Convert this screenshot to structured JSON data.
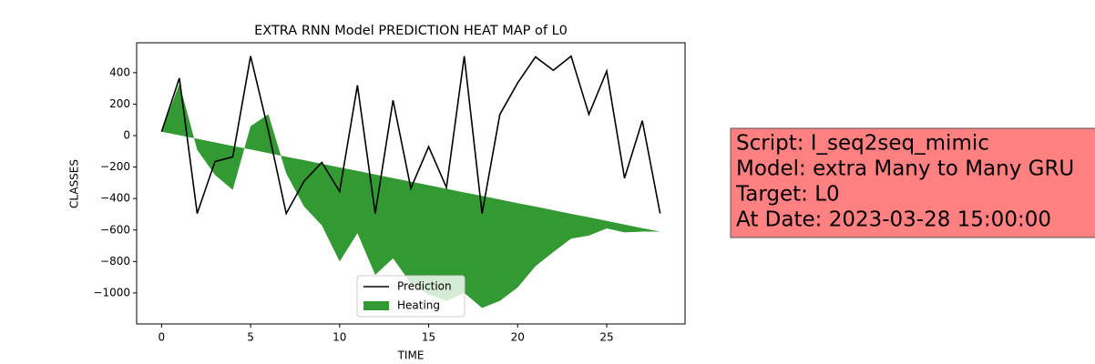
{
  "chart_data": {
    "type": "line",
    "title": "EXTRA RNN Model PREDICTION HEAT MAP of L0",
    "xlabel": "TIME",
    "ylabel": "CLASSES",
    "x": [
      0,
      1,
      2,
      3,
      4,
      5,
      6,
      7,
      8,
      9,
      10,
      11,
      12,
      13,
      14,
      15,
      16,
      17,
      18,
      19,
      20,
      21,
      22,
      23,
      24,
      25,
      26,
      27,
      28
    ],
    "series": [
      {
        "name": "Prediction",
        "color": "#000000",
        "kind": "line",
        "values": [
          25,
          365,
          -495,
          -165,
          -135,
          505,
          30,
          -495,
          -290,
          -170,
          -355,
          320,
          -495,
          225,
          -335,
          -70,
          -330,
          505,
          -495,
          135,
          335,
          500,
          415,
          505,
          135,
          410,
          -270,
          95,
          -495
        ]
      },
      {
        "name": "Heating",
        "color": "#339933",
        "kind": "band",
        "values": [
          25,
          330,
          -90,
          -250,
          -345,
          60,
          135,
          -240,
          -450,
          -570,
          -800,
          -620,
          -885,
          -780,
          -940,
          -1010,
          -1050,
          -1000,
          -1095,
          -1050,
          -965,
          -830,
          -740,
          -655,
          -635,
          -590,
          -615,
          -610,
          -610
        ],
        "base": [
          25,
          2,
          -20,
          -43,
          -66,
          -88,
          -111,
          -134,
          -156,
          -179,
          -202,
          -224,
          -247,
          -270,
          -293,
          -315,
          -338,
          -361,
          -383,
          -406,
          -429,
          -451,
          -474,
          -497,
          -519,
          -542,
          -565,
          -588,
          -610
        ]
      }
    ],
    "xlim": [
      -1.4,
      29.4
    ],
    "ylim": [
      -1197,
      590
    ],
    "xticks": [
      0,
      5,
      10,
      15,
      20,
      25
    ],
    "yticks": [
      {
        "value": -1000,
        "label": "−1000"
      },
      {
        "value": -800,
        "label": "−800"
      },
      {
        "value": -600,
        "label": "−600"
      },
      {
        "value": -400,
        "label": "−400"
      },
      {
        "value": -200,
        "label": "−200"
      },
      0,
      200,
      400
    ],
    "legend": "lower center",
    "annotation": [
      "Script: I_seq2seq_mimic",
      "Model: extra Many to Many GRU",
      "Target: L0",
      "At Date: 2023-03-28 15:00:00"
    ]
  }
}
